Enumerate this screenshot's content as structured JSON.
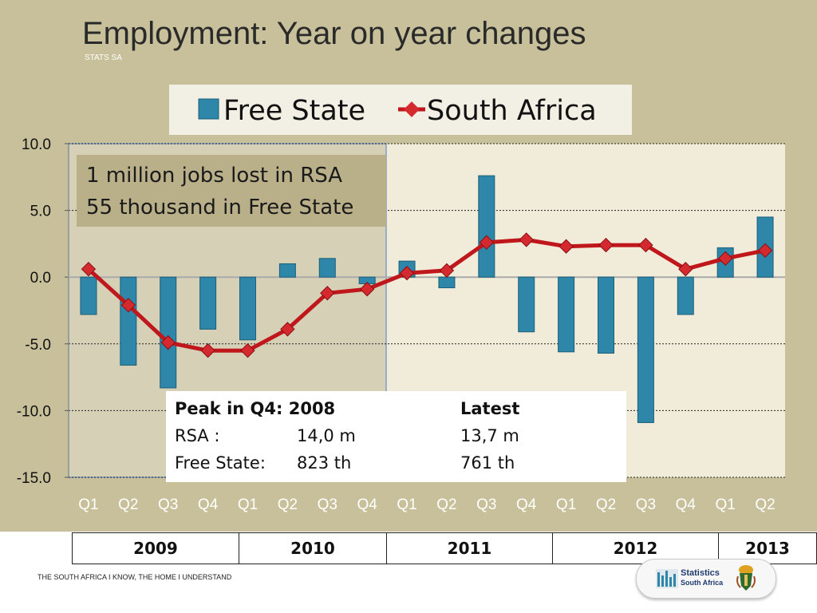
{
  "slide": {
    "title": "Employment: Year on year changes",
    "subtitle": "STATS SA",
    "footer": "THE SOUTH AFRICA I KNOW, THE HOME I UNDERSTAND",
    "logo_line1": "Statistics",
    "logo_line2": "South Africa"
  },
  "callout": {
    "line1": "1 million jobs lost in RSA",
    "line2": "55 thousand  in Free State"
  },
  "peak_box": {
    "peak_header": "Peak in Q4: 2008",
    "latest_header": "Latest",
    "rsa_label": "RSA :",
    "rsa_peak": "14,0 m",
    "rsa_latest": "13,7 m",
    "fs_label": "Free State:",
    "fs_peak": "823 th",
    "fs_latest": "761 th"
  },
  "years": [
    "2009",
    "2010",
    "2011",
    "2012",
    "2013"
  ],
  "chart_data": {
    "type": "bar",
    "categories": [
      "Q1",
      "Q2",
      "Q3",
      "Q4",
      "Q1",
      "Q2",
      "Q3",
      "Q4",
      "Q1",
      "Q2",
      "Q3",
      "Q4",
      "Q1",
      "Q2",
      "Q3",
      "Q4",
      "Q1",
      "Q2"
    ],
    "series": [
      {
        "name": "Free State",
        "type": "bar",
        "color": "#2e86a8",
        "values": [
          -2.8,
          -6.6,
          -8.3,
          -3.9,
          -4.7,
          1.0,
          1.4,
          -0.5,
          1.2,
          -0.8,
          7.6,
          -4.1,
          -5.6,
          -5.7,
          -10.9,
          -2.8,
          2.2,
          4.5
        ]
      },
      {
        "name": "South Africa",
        "type": "line",
        "color": "#c0171d",
        "values": [
          0.6,
          -2.1,
          -4.9,
          -5.5,
          -5.5,
          -3.9,
          -1.2,
          -0.9,
          0.3,
          0.5,
          2.6,
          2.8,
          2.3,
          2.4,
          2.4,
          0.6,
          1.4,
          2.0
        ]
      }
    ],
    "yticks": [
      "10.0",
      "5.0",
      "0.0",
      "-5.0",
      "-10.0",
      "-15.0"
    ],
    "ylim": [
      -15,
      10
    ],
    "legend_position": "top",
    "grid": true,
    "colors": {
      "background": "#c8c09a",
      "plot_area": "#f0ecd9",
      "shaded_area": "#d6d0b6"
    }
  }
}
